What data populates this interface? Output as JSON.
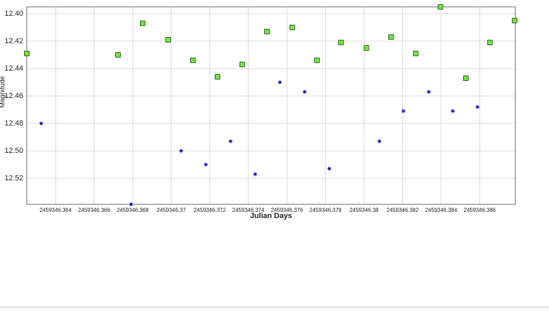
{
  "chart_data": {
    "type": "scatter",
    "xlabel": "Julian Days",
    "ylabel": "Magnitude",
    "xlim": [
      2459346.362506,
      2459346.38785
    ],
    "ylim": [
      12.395,
      12.539
    ],
    "y_inverted": true,
    "grid": true,
    "xticks": [
      2459346.364,
      2459346.366,
      2459346.368,
      2459346.37,
      2459346.372,
      2459346.374,
      2459346.376,
      2459346.378,
      2459346.38,
      2459346.382,
      2459346.384,
      2459346.386
    ],
    "yticks": [
      {
        "value": 12.4,
        "label": "12.40"
      },
      12.42,
      {
        "value": 12.44,
        "label": "12.44"
      },
      {
        "value": 12.46,
        "label": "12.46"
      },
      {
        "value": 12.48,
        "label": "12.48"
      },
      {
        "value": 12.5,
        "label": "12.50"
      },
      12.52
    ],
    "series": [
      {
        "marker": "square",
        "color": "#66ee33",
        "x": [
          2459346.362506,
          2459346.367238,
          2459346.36852,
          2459346.369836,
          2459346.371117,
          2459346.372399,
          2459346.37368,
          2459346.374961,
          2459346.376278,
          2459346.377559,
          2459346.378804,
          2459346.380121,
          2459346.381402,
          2459346.382683,
          2459346.383964,
          2459346.385281,
          2459346.386527,
          2459346.387808
        ],
        "values": [
          12.429,
          12.43,
          12.407,
          12.419,
          12.434,
          12.446,
          12.437,
          12.413,
          12.41,
          12.434,
          12.421,
          12.425,
          12.417,
          12.429,
          12.395,
          12.447,
          12.421,
          12.405
        ]
      },
      {
        "marker": "star",
        "color": "#1111cc",
        "x": [
          2459346.363253,
          2459346.367915,
          2459346.370512,
          2459346.371794,
          2459346.373075,
          2459346.374356,
          2459346.375637,
          2459346.376918,
          2459346.378199,
          2459346.380797,
          2459346.382043,
          2459346.383359,
          2459346.384605,
          2459346.385886
        ],
        "values": [
          12.48,
          12.539,
          12.5,
          12.51,
          12.493,
          12.517,
          12.45,
          12.457,
          12.513,
          12.493,
          12.471,
          12.457,
          12.471,
          12.468
        ]
      }
    ]
  }
}
